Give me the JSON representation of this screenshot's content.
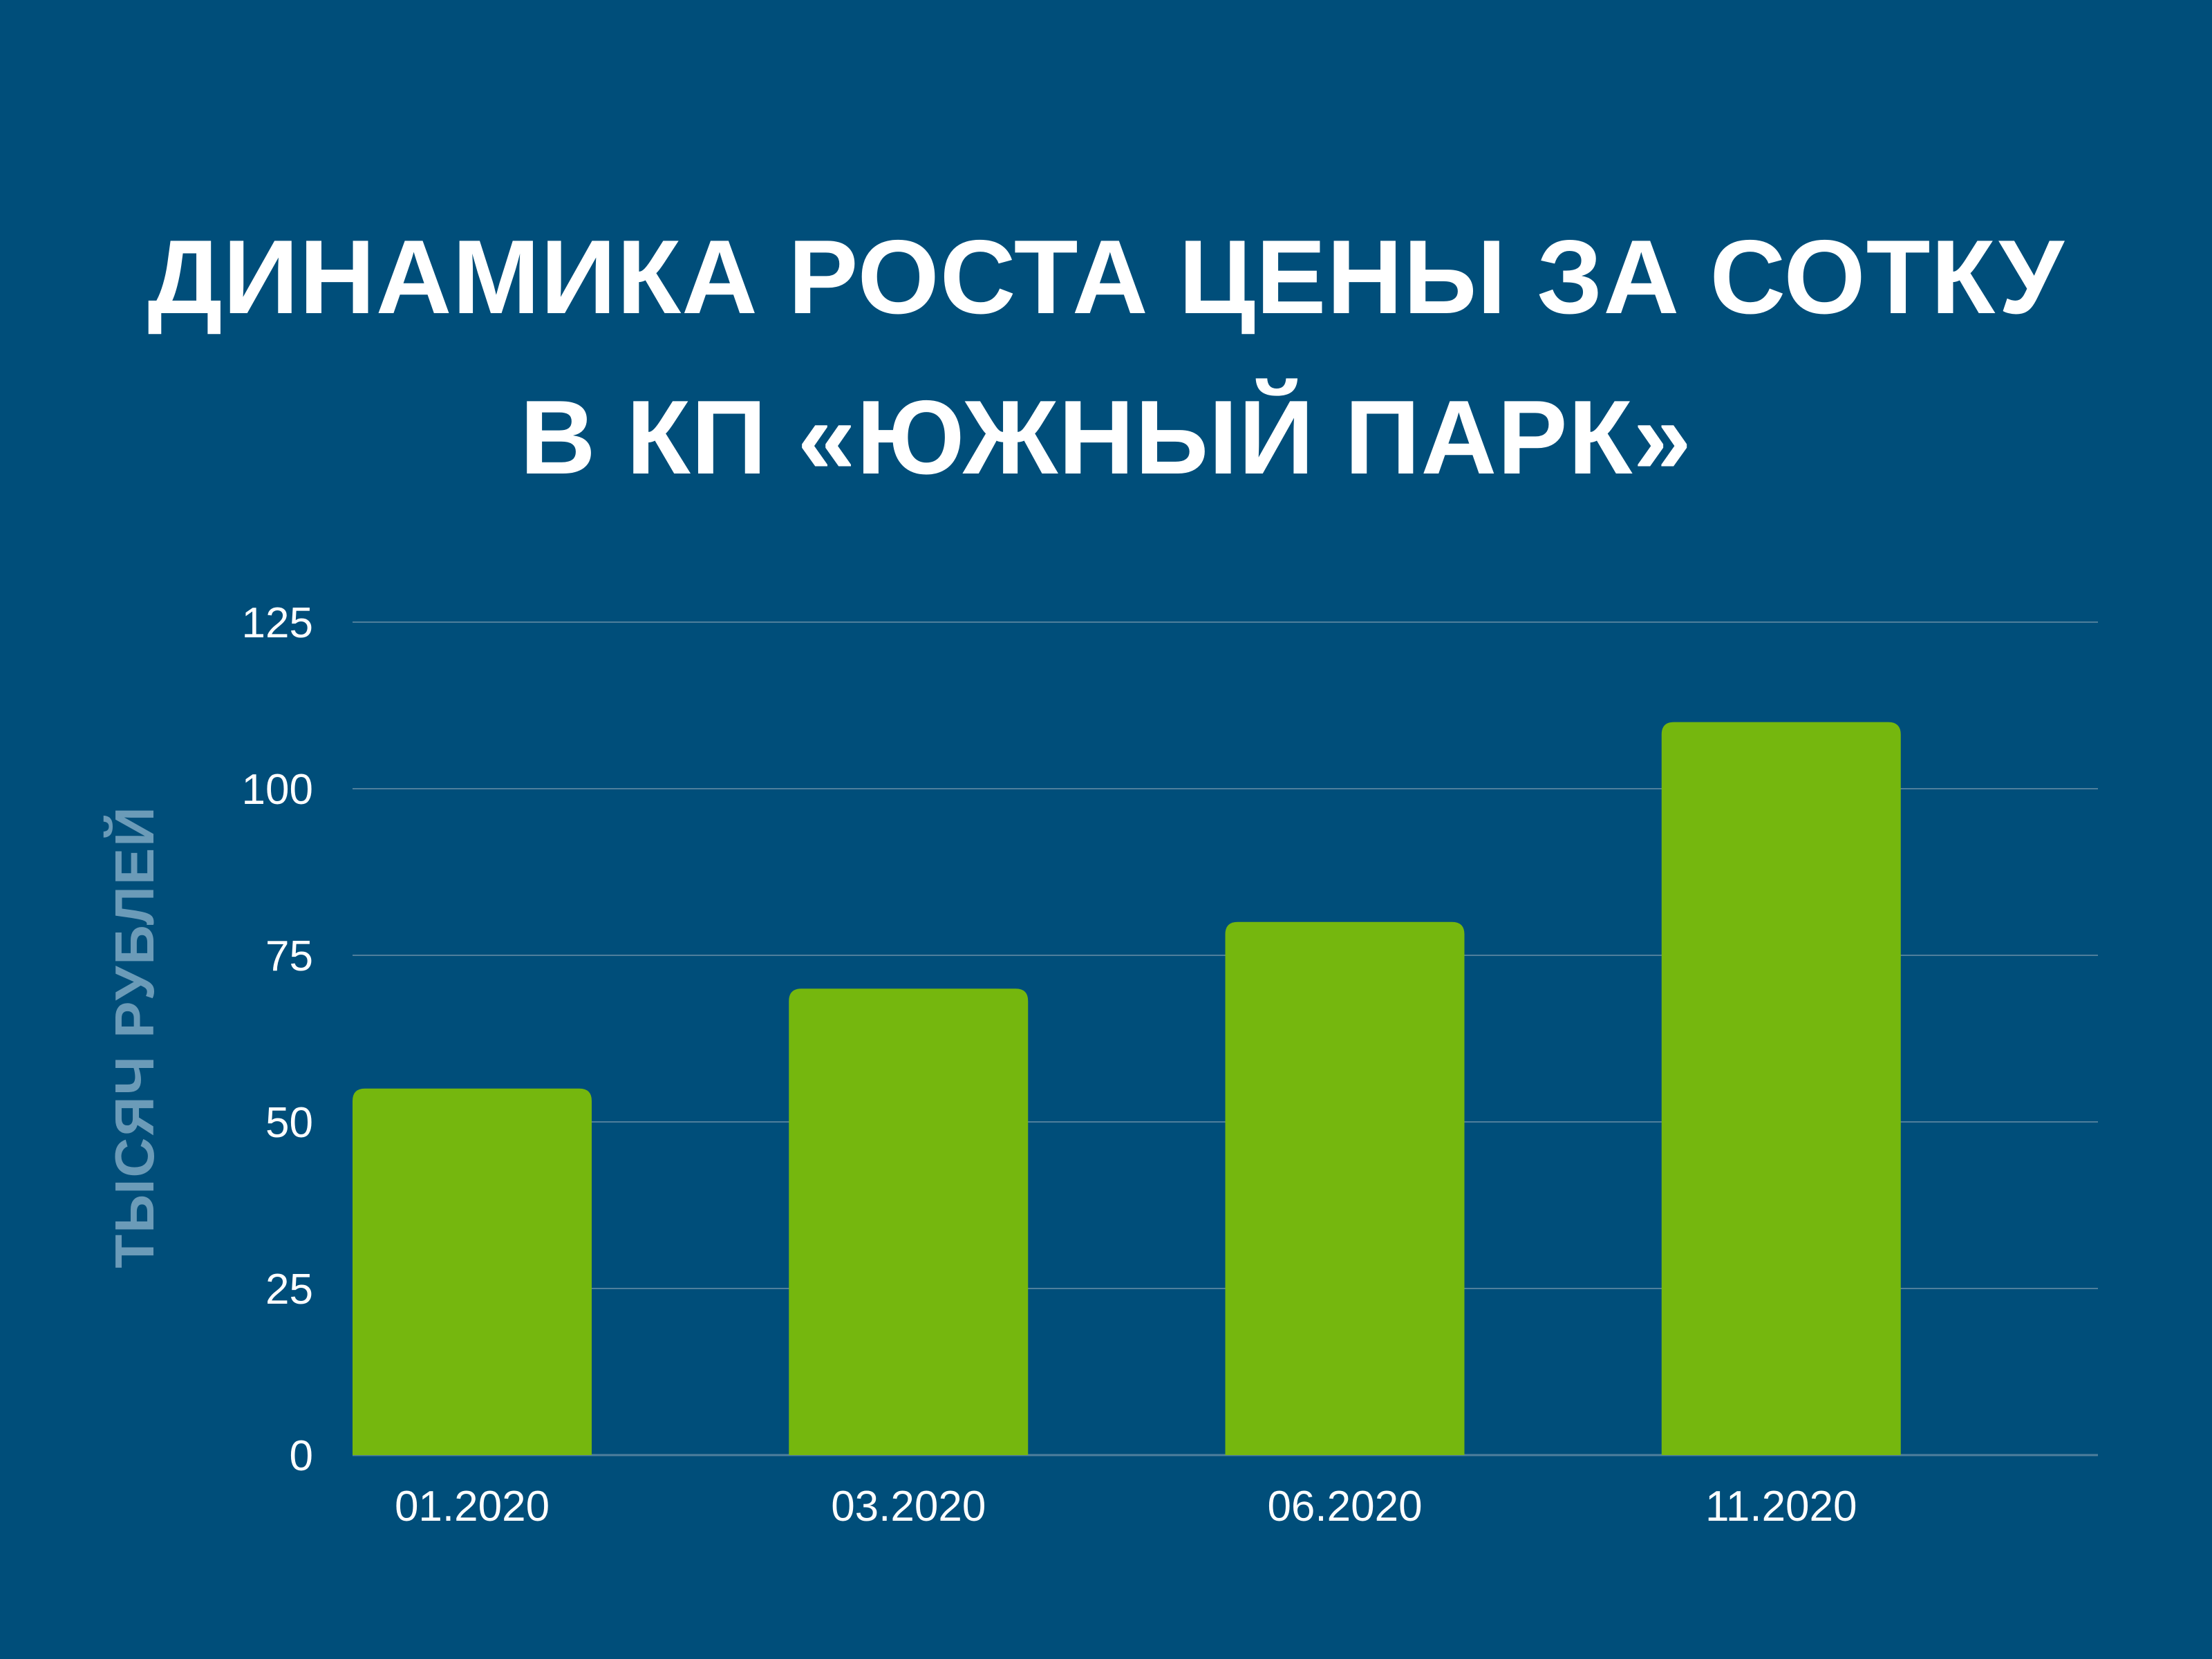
{
  "title": {
    "line1": "ДИНАМИКА РОСТА ЦЕНЫ ЗА СОТКУ",
    "line2": "В КП «ЮЖНЫЙ ПАРК»"
  },
  "colors": {
    "background": "#004e7a",
    "bar": "#75b70e",
    "grid": "#4f7f9c",
    "axis_title": "#6b9bb8",
    "text": "#ffffff"
  },
  "chart_data": {
    "type": "bar",
    "title": "ДИНАМИКА РОСТА ЦЕНЫ ЗА СОТКУ В КП «ЮЖНЫЙ ПАРК»",
    "xlabel": "",
    "ylabel": "ТЫСЯЧ РУБЛЕЙ",
    "categories": [
      "01.2020",
      "03.2020",
      "06.2020",
      "11.2020"
    ],
    "values": [
      55,
      70,
      80,
      110
    ],
    "ylim": [
      0,
      125
    ],
    "yticks": [
      0,
      25,
      50,
      75,
      100,
      125
    ],
    "grid": true,
    "legend": "none"
  }
}
